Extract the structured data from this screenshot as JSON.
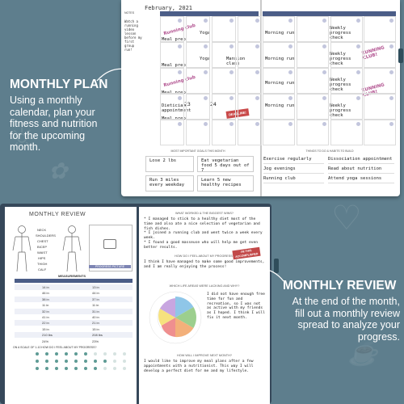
{
  "labels": {
    "monthly_plan": {
      "title": "MONTHLY PLAN",
      "text": [
        "Using a monthly",
        "calendar, plan your",
        "fitness and nutrition",
        "for the upcoming",
        "month."
      ]
    },
    "monthly_review": {
      "title": "MONTHLY REVIEW",
      "text": [
        "At the end of the month,",
        "fill out a monthly review",
        "spread to analyze your",
        "progress."
      ]
    }
  },
  "calendar": {
    "month": "February, 2021",
    "notes_text": "Watch a running video lesson before my first group run!",
    "cells": {
      "mp1": "Meal prep",
      "yoga1": "Yoga",
      "mp2": "Meal prep",
      "yoga2": "Yoga",
      "mansion": "Mansion class",
      "mp3": "Meal prep",
      "diet": "Dietician appointment",
      "mp4": "Meal prep",
      "n23": "23",
      "n24": "24",
      "run1": "Morning run",
      "run2": "Morning run",
      "run3": "Morning run",
      "run4": "Morning run",
      "wpc1": "Weekly progress check",
      "wpc2": "Weekly progress check",
      "wpc3": "Weekly progress check",
      "wpc4": "Weekly progress check"
    },
    "stamp_running": "Running club",
    "stamp_running_club": "RUNNING CLUB!",
    "stamp_deadline": "DEADLINE!",
    "goals": [
      "Lose 2 lbs",
      "Eat vegetarian food 5 days out of 7",
      "Run 3 miles every weekday",
      "Learn 5 new healthy recipes"
    ],
    "habits": [
      "Exercise regularly",
      "Jog evenings",
      "Running club",
      "Dissociation appointment",
      "Read about nutrition",
      "Attend yoga sessions"
    ]
  },
  "review": {
    "title": "MONTHLY REVIEW",
    "body_labels": [
      "NECK",
      "SHOULDERS",
      "CHEST",
      "BICEP",
      "WAIST",
      "HIPS",
      "THIGH",
      "CALF"
    ],
    "progress_picture": "PROGRESS PICTURE",
    "measurements_title": "MEASUREMENTS",
    "measurements": [
      {
        "a": "14 in",
        "b": "13 in"
      },
      {
        "a": "46 in",
        "b": "44 in"
      },
      {
        "a": "38 in",
        "b": "37 in"
      },
      {
        "a": "11 in",
        "b": "11 in"
      },
      {
        "a": "32 in",
        "b": "31 in"
      },
      {
        "a": "41 in",
        "b": "40 in"
      },
      {
        "a": "22 in",
        "b": "21 in"
      },
      {
        "a": "15 in",
        "b": "15 in"
      },
      {
        "a": "210 lbs",
        "b": "208 lbs"
      },
      {
        "a": "24%",
        "b": "23%"
      }
    ],
    "what_worked": "WHAT WORKED & THE BIGGEST WINS?",
    "wins": [
      "* I managed to stick to a healthy diet most of the time and also ate a nice selection of vegetarian and fish dishes.",
      "* I joined a running club and went twice a week every week.",
      "* I found a good masseuse who will help me get even better results."
    ],
    "feel_hdr": "HOW DO I FEEL ABOUT MY PROGRESS?",
    "feel_txt": "I think I have managed to make some good improvements, and I am really enjoying the process!",
    "accomplished": "I'M THIS ACCOMPLISHED",
    "lacking_hdr": "WHICH LIFE AREAS WERE LACKING AND WHY?",
    "lacking_txt": "I did not have enough free time for fun and recreation, so I was not as active with my friends as I hoped. I think I will fix it next month.",
    "improve_hdr": "HOW WILL I IMPROVE NEXT MONTH?",
    "improve_txt": "I would like to improve my meal plans after a few appointments with a nutritionist. This way I will develop a perfect diet for me and my lifestyle."
  }
}
